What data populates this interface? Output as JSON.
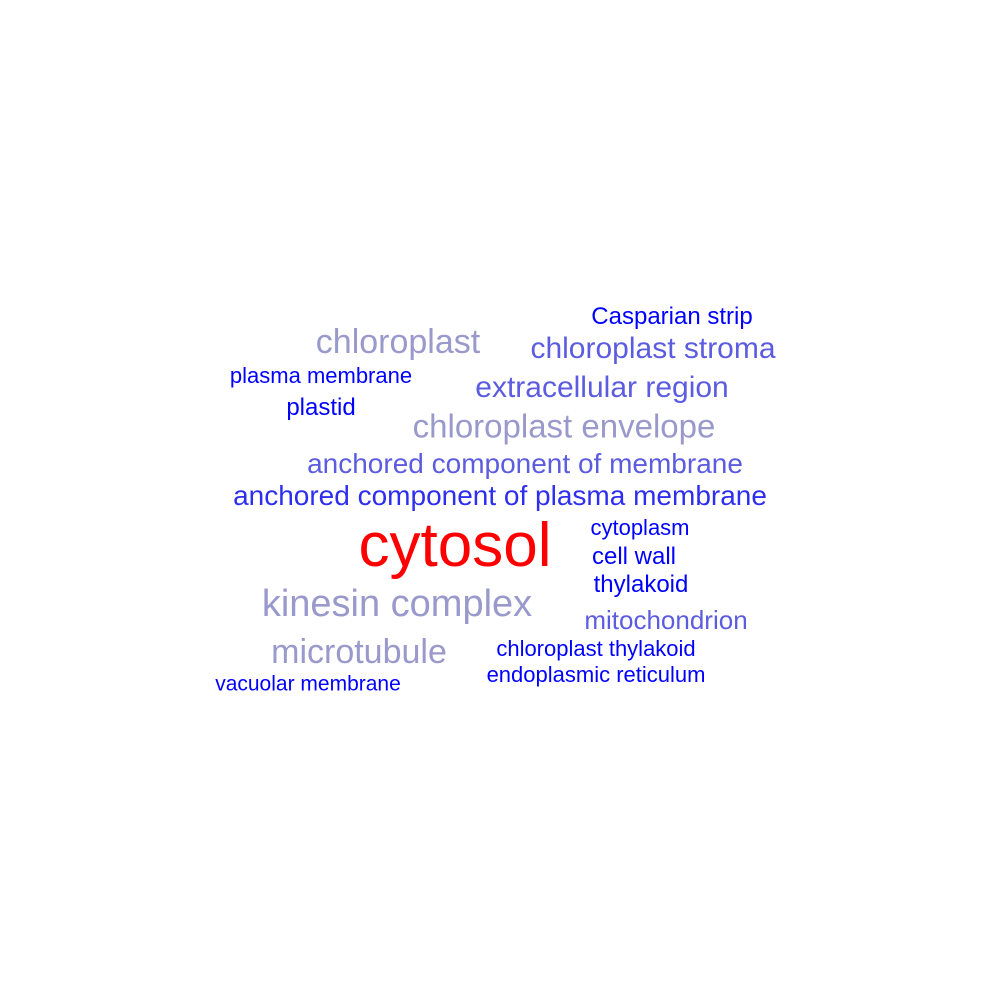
{
  "word_cloud": {
    "words": [
      {
        "text": "Casparian strip",
        "color": "#0000ff"
      },
      {
        "text": "chloroplast",
        "color": "#9999cc"
      },
      {
        "text": "chloroplast stroma",
        "color": "#5c5ce0"
      },
      {
        "text": "plasma membrane",
        "color": "#0000ff"
      },
      {
        "text": "extracellular region",
        "color": "#5c5ce0"
      },
      {
        "text": "plastid",
        "color": "#0000ff"
      },
      {
        "text": "chloroplast envelope",
        "color": "#9999cc"
      },
      {
        "text": "anchored component of membrane",
        "color": "#5c5ce0"
      },
      {
        "text": "anchored component of plasma membrane",
        "color": "#2e2eee"
      },
      {
        "text": "cytosol",
        "color": "#ff0000"
      },
      {
        "text": "cytoplasm",
        "color": "#0000ff"
      },
      {
        "text": "cell wall",
        "color": "#0000ff"
      },
      {
        "text": "thylakoid",
        "color": "#0000ff"
      },
      {
        "text": "kinesin complex",
        "color": "#9999cc"
      },
      {
        "text": "mitochondrion",
        "color": "#5c5ce0"
      },
      {
        "text": "microtubule",
        "color": "#9999cc"
      },
      {
        "text": "chloroplast thylakoid",
        "color": "#0000ff"
      },
      {
        "text": "endoplasmic reticulum",
        "color": "#0000ff"
      },
      {
        "text": "vacuolar membrane",
        "color": "#0000ff"
      }
    ]
  }
}
